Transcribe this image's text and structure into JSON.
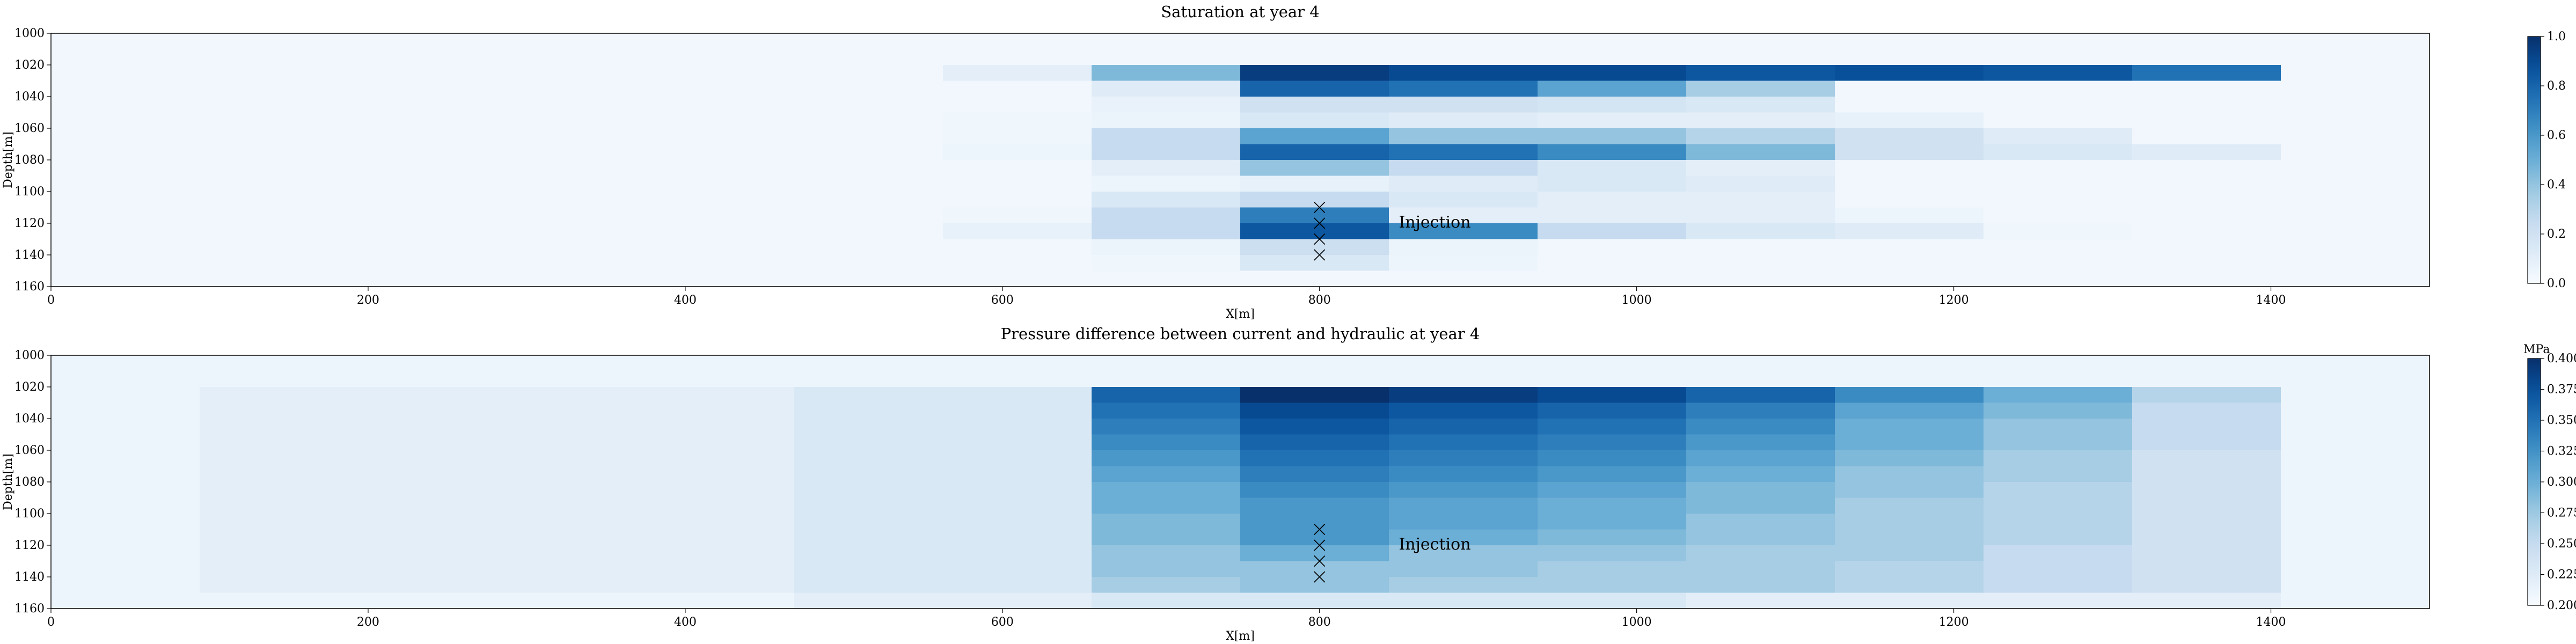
{
  "chart_data": [
    {
      "type": "heatmap",
      "title": "Saturation at year 4",
      "xlabel": "X[m]",
      "ylabel": "Depth[m]",
      "xlim": [
        0,
        1500
      ],
      "ylim": [
        1000,
        1160
      ],
      "y_inverted": true,
      "x_ticks": [
        "0",
        "200",
        "400",
        "600",
        "800",
        "1000",
        "1200",
        "1400"
      ],
      "y_ticks": [
        "1000",
        "1020",
        "1040",
        "1060",
        "1080",
        "1100",
        "1120",
        "1140",
        "1160"
      ],
      "colormap": "Blues",
      "color_range": [
        0,
        1
      ],
      "colorbar_unit": "",
      "colorbar_ticks": [
        "0.0",
        "0.2",
        "0.4",
        "0.6",
        "0.8",
        "1.0"
      ],
      "cell_width_m": 93.75,
      "cell_height_m": 10,
      "cols_x_start": [
        0,
        93.75,
        187.5,
        281.25,
        375,
        468.75,
        562.5,
        656.25,
        750,
        843.75,
        937.5,
        1031.25,
        1125,
        1218.75,
        1312.5,
        1406.25
      ],
      "rows_depth_start": [
        1000,
        1010,
        1020,
        1030,
        1040,
        1050,
        1060,
        1070,
        1080,
        1090,
        1100,
        1110,
        1120,
        1130,
        1140,
        1150
      ],
      "background_value": 0.03,
      "values": [
        [
          0.03,
          0.03,
          0.03,
          0.03,
          0.03,
          0.03,
          0.03,
          0.03,
          0.03,
          0.03,
          0.03,
          0.03,
          0.03,
          0.03,
          0.03,
          0.03
        ],
        [
          0.03,
          0.03,
          0.03,
          0.03,
          0.03,
          0.03,
          0.03,
          0.03,
          0.03,
          0.03,
          0.03,
          0.03,
          0.03,
          0.03,
          0.03,
          0.03
        ],
        [
          0.03,
          0.03,
          0.03,
          0.03,
          0.03,
          0.03,
          0.1,
          0.45,
          0.95,
          0.9,
          0.9,
          0.85,
          0.88,
          0.85,
          0.75,
          0.03
        ],
        [
          0.03,
          0.03,
          0.03,
          0.03,
          0.03,
          0.03,
          0.03,
          0.12,
          0.8,
          0.75,
          0.55,
          0.35,
          0.03,
          0.03,
          0.03,
          0.03
        ],
        [
          0.03,
          0.03,
          0.03,
          0.03,
          0.03,
          0.03,
          0.03,
          0.07,
          0.2,
          0.2,
          0.18,
          0.15,
          0.03,
          0.03,
          0.03,
          0.03
        ],
        [
          0.03,
          0.03,
          0.03,
          0.03,
          0.03,
          0.03,
          0.04,
          0.06,
          0.15,
          0.12,
          0.1,
          0.1,
          0.08,
          0.03,
          0.03,
          0.03
        ],
        [
          0.03,
          0.03,
          0.03,
          0.03,
          0.03,
          0.03,
          0.04,
          0.25,
          0.55,
          0.4,
          0.4,
          0.3,
          0.2,
          0.12,
          0.03,
          0.03
        ],
        [
          0.03,
          0.03,
          0.03,
          0.03,
          0.03,
          0.03,
          0.05,
          0.25,
          0.8,
          0.75,
          0.65,
          0.45,
          0.2,
          0.15,
          0.12,
          0.03
        ],
        [
          0.03,
          0.03,
          0.03,
          0.03,
          0.03,
          0.03,
          0.03,
          0.1,
          0.4,
          0.25,
          0.15,
          0.1,
          0.03,
          0.03,
          0.03,
          0.03
        ],
        [
          0.03,
          0.03,
          0.03,
          0.03,
          0.03,
          0.03,
          0.03,
          0.05,
          0.08,
          0.12,
          0.15,
          0.12,
          0.03,
          0.03,
          0.03,
          0.03
        ],
        [
          0.03,
          0.03,
          0.03,
          0.03,
          0.03,
          0.03,
          0.03,
          0.15,
          0.25,
          0.15,
          0.1,
          0.1,
          0.03,
          0.03,
          0.03,
          0.03
        ],
        [
          0.03,
          0.03,
          0.03,
          0.03,
          0.03,
          0.03,
          0.04,
          0.25,
          0.7,
          0.1,
          0.1,
          0.1,
          0.05,
          0.03,
          0.03,
          0.03
        ],
        [
          0.03,
          0.03,
          0.03,
          0.03,
          0.03,
          0.03,
          0.08,
          0.25,
          0.85,
          0.65,
          0.25,
          0.15,
          0.12,
          0.04,
          0.03,
          0.03
        ],
        [
          0.03,
          0.03,
          0.03,
          0.03,
          0.03,
          0.03,
          0.03,
          0.06,
          0.22,
          0.06,
          0.03,
          0.03,
          0.03,
          0.03,
          0.03,
          0.03
        ],
        [
          0.03,
          0.03,
          0.03,
          0.03,
          0.03,
          0.03,
          0.03,
          0.04,
          0.15,
          0.05,
          0.03,
          0.03,
          0.03,
          0.03,
          0.03,
          0.03
        ],
        [
          0.03,
          0.03,
          0.03,
          0.03,
          0.03,
          0.03,
          0.03,
          0.03,
          0.03,
          0.03,
          0.03,
          0.03,
          0.03,
          0.03,
          0.03,
          0.03
        ]
      ],
      "markers": [
        {
          "x": 800,
          "y": 1110
        },
        {
          "x": 800,
          "y": 1120
        },
        {
          "x": 800,
          "y": 1130
        },
        {
          "x": 800,
          "y": 1140
        }
      ],
      "annotation": {
        "text": "Injection",
        "x": 850,
        "y": 1120
      }
    },
    {
      "type": "heatmap",
      "title": "Pressure difference between current and hydraulic at year 4",
      "xlabel": "X[m]",
      "ylabel": "Depth[m]",
      "xlim": [
        0,
        1500
      ],
      "ylim": [
        1000,
        1160
      ],
      "y_inverted": true,
      "x_ticks": [
        "0",
        "200",
        "400",
        "600",
        "800",
        "1000",
        "1200",
        "1400"
      ],
      "y_ticks": [
        "1000",
        "1020",
        "1040",
        "1060",
        "1080",
        "1100",
        "1120",
        "1140",
        "1160"
      ],
      "colormap": "Blues",
      "color_range": [
        0.2,
        0.4
      ],
      "colorbar_unit": "MPa",
      "colorbar_ticks": [
        "0.200",
        "0.225",
        "0.250",
        "0.275",
        "0.300",
        "0.325",
        "0.350",
        "0.375",
        "0.400"
      ],
      "cell_width_m": 93.75,
      "cell_height_m": 10,
      "cols_x_start": [
        0,
        93.75,
        187.5,
        281.25,
        375,
        468.75,
        562.5,
        656.25,
        750,
        843.75,
        937.5,
        1031.25,
        1125,
        1218.75,
        1312.5,
        1406.25
      ],
      "rows_depth_start": [
        1000,
        1010,
        1020,
        1030,
        1040,
        1050,
        1060,
        1070,
        1080,
        1090,
        1100,
        1110,
        1120,
        1130,
        1140,
        1150
      ],
      "background_value": 0.21,
      "values": [
        [
          0.21,
          0.21,
          0.21,
          0.21,
          0.21,
          0.21,
          0.21,
          0.21,
          0.21,
          0.21,
          0.21,
          0.21,
          0.21,
          0.21,
          0.21,
          0.21
        ],
        [
          0.21,
          0.21,
          0.21,
          0.21,
          0.21,
          0.21,
          0.21,
          0.21,
          0.21,
          0.21,
          0.21,
          0.21,
          0.21,
          0.21,
          0.21,
          0.21
        ],
        [
          0.21,
          0.22,
          0.22,
          0.22,
          0.22,
          0.23,
          0.23,
          0.36,
          0.4,
          0.39,
          0.38,
          0.36,
          0.33,
          0.3,
          0.26,
          0.21
        ],
        [
          0.21,
          0.22,
          0.22,
          0.22,
          0.22,
          0.23,
          0.23,
          0.35,
          0.38,
          0.37,
          0.36,
          0.34,
          0.31,
          0.29,
          0.25,
          0.21
        ],
        [
          0.21,
          0.22,
          0.22,
          0.22,
          0.22,
          0.23,
          0.23,
          0.34,
          0.37,
          0.36,
          0.35,
          0.33,
          0.3,
          0.28,
          0.25,
          0.21
        ],
        [
          0.21,
          0.22,
          0.22,
          0.22,
          0.22,
          0.23,
          0.23,
          0.33,
          0.36,
          0.35,
          0.34,
          0.32,
          0.3,
          0.28,
          0.25,
          0.21
        ],
        [
          0.21,
          0.22,
          0.22,
          0.22,
          0.22,
          0.23,
          0.23,
          0.32,
          0.35,
          0.34,
          0.33,
          0.31,
          0.29,
          0.27,
          0.24,
          0.21
        ],
        [
          0.21,
          0.22,
          0.22,
          0.22,
          0.22,
          0.23,
          0.23,
          0.31,
          0.34,
          0.33,
          0.32,
          0.3,
          0.28,
          0.27,
          0.24,
          0.21
        ],
        [
          0.21,
          0.22,
          0.22,
          0.22,
          0.22,
          0.23,
          0.23,
          0.3,
          0.33,
          0.32,
          0.31,
          0.29,
          0.28,
          0.26,
          0.24,
          0.21
        ],
        [
          0.21,
          0.22,
          0.22,
          0.22,
          0.22,
          0.23,
          0.23,
          0.3,
          0.32,
          0.31,
          0.3,
          0.29,
          0.27,
          0.26,
          0.24,
          0.21
        ],
        [
          0.21,
          0.22,
          0.22,
          0.22,
          0.22,
          0.23,
          0.23,
          0.29,
          0.32,
          0.31,
          0.3,
          0.28,
          0.27,
          0.26,
          0.24,
          0.21
        ],
        [
          0.21,
          0.22,
          0.22,
          0.22,
          0.22,
          0.23,
          0.23,
          0.29,
          0.32,
          0.3,
          0.29,
          0.28,
          0.27,
          0.26,
          0.24,
          0.21
        ],
        [
          0.21,
          0.22,
          0.22,
          0.22,
          0.22,
          0.23,
          0.23,
          0.28,
          0.3,
          0.28,
          0.28,
          0.27,
          0.27,
          0.25,
          0.24,
          0.21
        ],
        [
          0.21,
          0.22,
          0.22,
          0.22,
          0.22,
          0.23,
          0.23,
          0.28,
          0.28,
          0.28,
          0.27,
          0.27,
          0.26,
          0.25,
          0.24,
          0.21
        ],
        [
          0.21,
          0.22,
          0.22,
          0.22,
          0.22,
          0.23,
          0.23,
          0.27,
          0.28,
          0.27,
          0.27,
          0.27,
          0.26,
          0.25,
          0.24,
          0.21
        ],
        [
          0.21,
          0.21,
          0.21,
          0.21,
          0.21,
          0.22,
          0.22,
          0.23,
          0.23,
          0.23,
          0.23,
          0.22,
          0.22,
          0.22,
          0.22,
          0.21
        ]
      ],
      "markers": [
        {
          "x": 800,
          "y": 1110
        },
        {
          "x": 800,
          "y": 1120
        },
        {
          "x": 800,
          "y": 1130
        },
        {
          "x": 800,
          "y": 1140
        }
      ],
      "annotation": {
        "text": "Injection",
        "x": 850,
        "y": 1120
      }
    }
  ]
}
